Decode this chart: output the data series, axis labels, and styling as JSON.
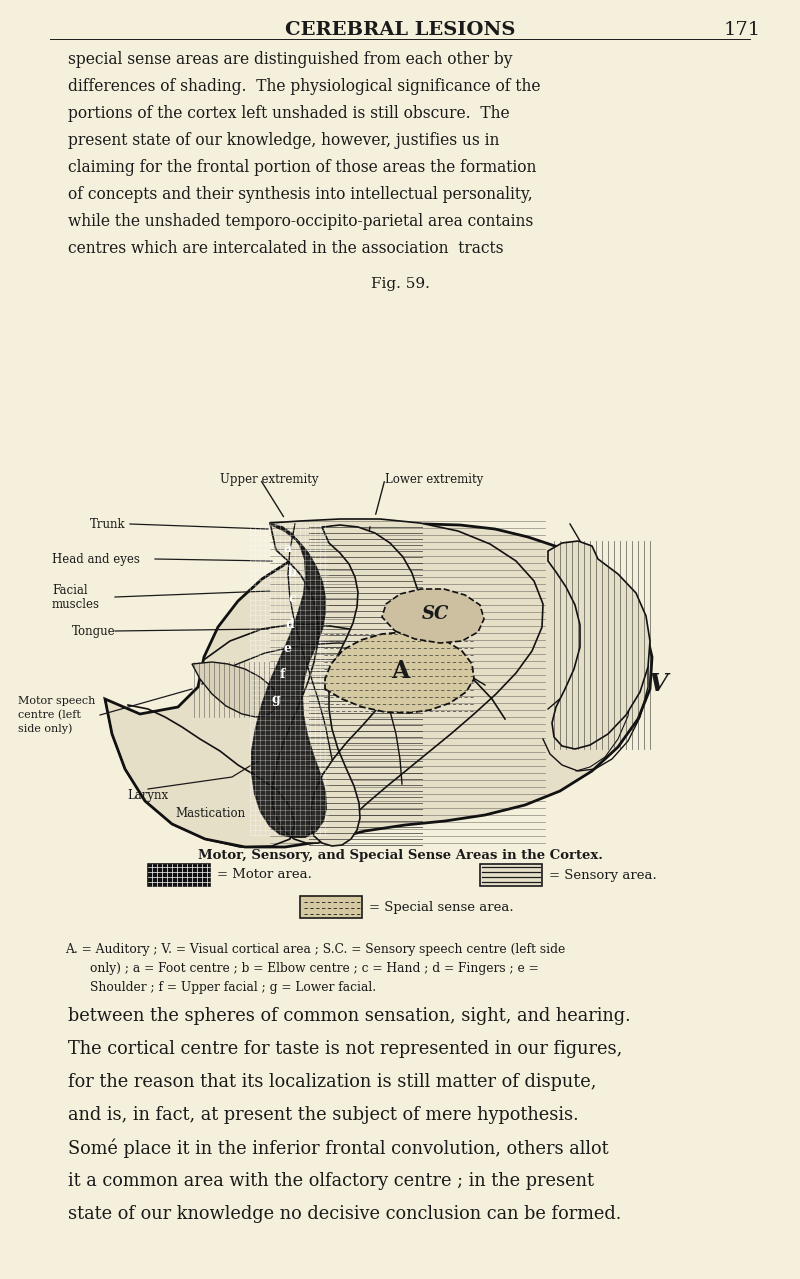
{
  "bg_color": "#f5f0dc",
  "page_header": "CEREBRAL LESIONS",
  "page_number": "171",
  "top_text_lines": [
    "special sense areas are distinguished from each other by",
    "differences of shading.  The physiological significance of the",
    "portions of the cortex left unshaded is still obscure.  The",
    "present state of our knowledge, however, justifies us in",
    "claiming for the frontal portion of those areas the formation",
    "of concepts and their synthesis into intellectual personality,",
    "while the unshaded temporo-occipito-parietal area contains",
    "centres which are intercalated in the association  tracts"
  ],
  "fig_caption": "Fig. 59.",
  "legend_title": "Motor, Sensory, and Special Sense Areas in the Cortex.",
  "legend_motor": "= Motor area.",
  "legend_sensory": "= Sensory area.",
  "legend_special": "= Special sense area.",
  "key_lines": [
    "A. = Auditory ; V. = Visual cortical area ; S.C. = Sensory speech centre (left side",
    "only) ; a = Foot centre ; b = Elbow centre ; c = Hand ; d = Fingers ; e =",
    "Shoulder ; f = Upper facial ; g = Lower facial."
  ],
  "bottom_lines": [
    "between the spheres of common sensation, sight, and hearing.",
    "The cortical centre for taste is not represented in our figures,",
    "for the reason that its localization is still matter of dispute,",
    "and is, in fact, at present the subject of mere hypothesis.",
    "Somé place it in the inferior frontal convolution, others allot",
    "it a common area with the olfactory centre ; in the present",
    "state of our knowledge no decisive conclusion can be formed."
  ],
  "text_color": "#1a1a1a"
}
